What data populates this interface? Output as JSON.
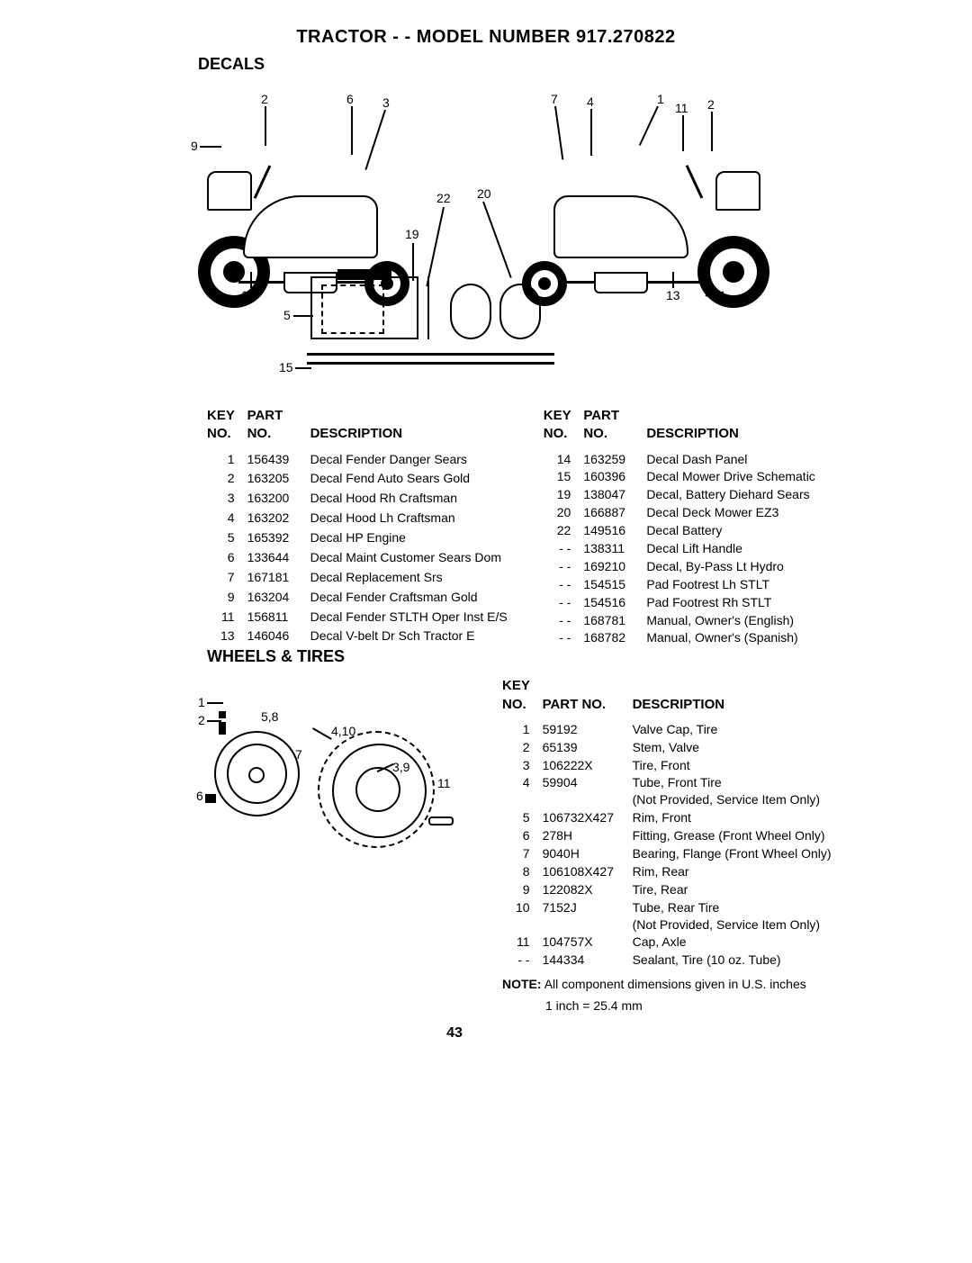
{
  "header": {
    "title": "TRACTOR - - MODEL NUMBER 917.270822"
  },
  "decals": {
    "section_label": "DECALS",
    "callouts_left": [
      "2",
      "6",
      "3",
      "9",
      "14",
      "5",
      "15",
      "22",
      "19",
      "20"
    ],
    "callouts_right": [
      "7",
      "4",
      "1",
      "11",
      "2",
      "14",
      "13"
    ],
    "table_headers": {
      "key": "KEY NO.",
      "part": "PART NO.",
      "desc": "DESCRIPTION"
    },
    "left_rows": [
      {
        "k": "1",
        "p": "156439",
        "d": "Decal Fender Danger Sears"
      },
      {
        "k": "2",
        "p": "163205",
        "d": "Decal Fend Auto Sears Gold"
      },
      {
        "k": "3",
        "p": "163200",
        "d": "Decal Hood Rh Craftsman"
      },
      {
        "k": "4",
        "p": "163202",
        "d": "Decal Hood Lh Craftsman"
      },
      {
        "k": "5",
        "p": "165392",
        "d": "Decal HP Engine"
      },
      {
        "k": "6",
        "p": "133644",
        "d": "Decal Maint Customer Sears Dom"
      },
      {
        "k": "7",
        "p": "167181",
        "d": "Decal Replacement Srs"
      },
      {
        "k": "9",
        "p": "163204",
        "d": "Decal Fender Craftsman Gold"
      },
      {
        "k": "11",
        "p": "156811",
        "d": "Decal Fender STLTH Oper Inst E/S"
      },
      {
        "k": "13",
        "p": "146046",
        "d": "Decal V-belt Dr Sch Tractor E"
      }
    ],
    "right_rows": [
      {
        "k": "14",
        "p": "163259",
        "d": "Decal Dash Panel"
      },
      {
        "k": "15",
        "p": "160396",
        "d": "Decal Mower Drive Schematic"
      },
      {
        "k": "19",
        "p": "138047",
        "d": "Decal, Battery Diehard Sears"
      },
      {
        "k": "20",
        "p": "166887",
        "d": "Decal Deck Mower EZ3"
      },
      {
        "k": "22",
        "p": "149516",
        "d": "Decal Battery"
      },
      {
        "k": "- -",
        "p": "138311",
        "d": "Decal Lift Handle"
      },
      {
        "k": "- -",
        "p": "169210",
        "d": "Decal, By-Pass Lt Hydro"
      },
      {
        "k": "- -",
        "p": "154515",
        "d": "Pad Footrest Lh STLT"
      },
      {
        "k": "- -",
        "p": "154516",
        "d": "Pad Footrest Rh STLT"
      },
      {
        "k": "- -",
        "p": "168781",
        "d": "Manual, Owner's (English)"
      },
      {
        "k": "- -",
        "p": "168782",
        "d": "Manual, Owner's (Spanish)"
      }
    ]
  },
  "wheels": {
    "section_label": "WHEELS & TIRES",
    "callouts": [
      "1",
      "2",
      "5,8",
      "4,10",
      "7",
      "3,9",
      "6",
      "11"
    ],
    "table_headers": {
      "key": "KEY NO.",
      "part": "PART NO.",
      "desc": "DESCRIPTION"
    },
    "rows": [
      {
        "k": "1",
        "p": "59192",
        "d": "Valve Cap, Tire"
      },
      {
        "k": "2",
        "p": "65139",
        "d": "Stem, Valve"
      },
      {
        "k": "3",
        "p": "106222X",
        "d": "Tire, Front"
      },
      {
        "k": "4",
        "p": "59904",
        "d": "Tube, Front Tire\n(Not Provided, Service Item Only)"
      },
      {
        "k": "5",
        "p": "106732X427",
        "d": "Rim, Front"
      },
      {
        "k": "6",
        "p": "278H",
        "d": "Fitting, Grease (Front Wheel Only)"
      },
      {
        "k": "7",
        "p": "9040H",
        "d": "Bearing, Flange (Front Wheel Only)"
      },
      {
        "k": "8",
        "p": "106108X427",
        "d": "Rim, Rear"
      },
      {
        "k": "9",
        "p": "122082X",
        "d": "Tire, Rear"
      },
      {
        "k": "10",
        "p": "7152J",
        "d": "Tube, Rear Tire\n(Not Provided, Service Item Only)"
      },
      {
        "k": "11",
        "p": "104757X",
        "d": "Cap, Axle"
      },
      {
        "k": "- -",
        "p": "144334",
        "d": "Sealant, Tire (10 oz. Tube)"
      }
    ],
    "note_label": "NOTE:",
    "note_text": "All component dimensions given in U.S. inches",
    "note_sub": "1 inch = 25.4 mm"
  },
  "page_number": "43"
}
